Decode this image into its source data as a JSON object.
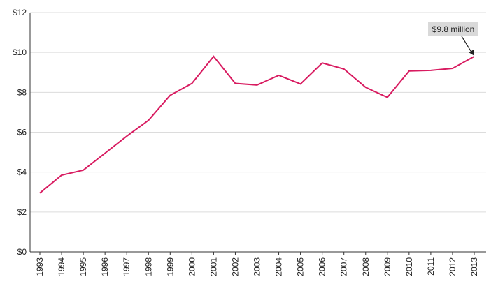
{
  "chart_data": {
    "type": "line",
    "title": "",
    "xlabel": "",
    "ylabel": "",
    "x": [
      "1993",
      "1994",
      "1995",
      "1996",
      "1997",
      "1998",
      "1999",
      "2000",
      "2001",
      "2002",
      "2003",
      "2004",
      "2005",
      "2006",
      "2007",
      "2008",
      "2009",
      "2010",
      "2011",
      "2012",
      "2013"
    ],
    "series": [
      {
        "values": [
          2.95,
          3.85,
          4.1,
          4.95,
          5.8,
          6.6,
          7.85,
          8.45,
          9.8,
          8.45,
          8.37,
          8.85,
          8.42,
          9.47,
          9.17,
          8.25,
          7.75,
          9.07,
          9.1,
          9.2,
          9.8
        ],
        "color": "#d81b60"
      }
    ],
    "ylim": [
      0,
      12
    ],
    "yticks": [
      0,
      2,
      4,
      6,
      8,
      10,
      12
    ],
    "ytick_labels": [
      "$0",
      "$2",
      "$4",
      "$6",
      "$8",
      "$10",
      "$12"
    ],
    "grid": "horizontal",
    "annotation": {
      "text": "$9.8 million",
      "x": "2013",
      "y": 9.8,
      "box_color": "#d9d9d9"
    }
  }
}
